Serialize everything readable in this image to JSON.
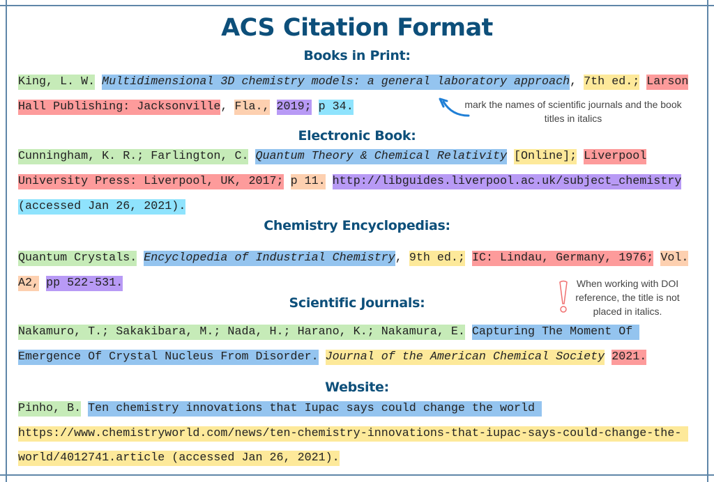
{
  "title": "ACS Citation Format",
  "palette": {
    "author": "#c6ebb8",
    "title": "#94c4ef",
    "edition": "#fde99a",
    "publisher": "#fd9b9b",
    "place": "#fdd0b0",
    "year": "#b89af5",
    "page": "#8fe3fd",
    "frame": "#5f86a8",
    "heading": "#0d4f7a"
  },
  "sections": [
    {
      "heading": "Books in Print:"
    },
    {
      "heading": "Electronic Book:"
    },
    {
      "heading": "Chemistry Encyclopedias:"
    },
    {
      "heading": "Scientific Journals:"
    },
    {
      "heading": "Website:"
    }
  ],
  "lines": [
    [
      {
        "text": "King, L. W.",
        "color": "#c6ebb8"
      },
      {
        "text": " "
      },
      {
        "text": "Multidimensional 3D chemistry models: a general laboratory approach",
        "color": "#94c4ef",
        "italic": true
      },
      {
        "text": ", "
      },
      {
        "text": "7th ed.;",
        "color": "#fde99a"
      },
      {
        "text": " "
      },
      {
        "text": "Larson",
        "color": "#fd9b9b"
      }
    ],
    [
      {
        "text": "Hall Publishing: Jacksonville",
        "color": "#fd9b9b"
      },
      {
        "text": ", "
      },
      {
        "text": "Fla.,",
        "color": "#fdd0b0"
      },
      {
        "text": " "
      },
      {
        "text": "2019;",
        "color": "#b89af5"
      },
      {
        "text": " "
      },
      {
        "text": "p 34.",
        "color": "#8fe3fd"
      }
    ],
    [
      {
        "text": "Cunningham, K. R.; Farlington, C.",
        "color": "#c6ebb8"
      },
      {
        "text": " "
      },
      {
        "text": "Quantum Theory & Chemical Relativity",
        "color": "#94c4ef",
        "italic": true
      },
      {
        "text": " "
      },
      {
        "text": "[Online];",
        "color": "#fde99a"
      },
      {
        "text": " "
      },
      {
        "text": "Liverpool",
        "color": "#fd9b9b"
      }
    ],
    [
      {
        "text": "University Press: Liverpool, UK, 2017;",
        "color": "#fd9b9b"
      },
      {
        "text": " "
      },
      {
        "text": "p 11.",
        "color": "#fdd0b0"
      },
      {
        "text": " "
      },
      {
        "text": "http://libguides.liverpool.ac.uk/subject_chemistry",
        "color": "#b89af5"
      }
    ],
    [
      {
        "text": "(accessed Jan 26, 2021).",
        "color": "#8fe3fd"
      }
    ],
    [
      {
        "text": "Quantum Crystals.",
        "color": "#c6ebb8"
      },
      {
        "text": " "
      },
      {
        "text": "Encyclopedia of Industrial Chemistry",
        "color": "#94c4ef",
        "italic": true
      },
      {
        "text": ", "
      },
      {
        "text": "9th ed.;",
        "color": "#fde99a"
      },
      {
        "text": " "
      },
      {
        "text": "IC: Lindau, Germany, 1976;",
        "color": "#fd9b9b"
      },
      {
        "text": " "
      },
      {
        "text": "Vol.",
        "color": "#fdd0b0"
      }
    ],
    [
      {
        "text": "A2,",
        "color": "#fdd0b0"
      },
      {
        "text": " "
      },
      {
        "text": "pp 522-531.",
        "color": "#b89af5"
      }
    ],
    [
      {
        "text": "Nakamuro, T.; Sakakibara, M.; Nada, H.; Harano, K.; Nakamura, E.",
        "color": "#c6ebb8"
      },
      {
        "text": " "
      },
      {
        "text": "Capturing The Moment Of ",
        "color": "#94c4ef"
      }
    ],
    [
      {
        "text": "Emergence Of Crystal Nucleus From Disorder.",
        "color": "#94c4ef"
      },
      {
        "text": " "
      },
      {
        "text": "Journal of the American Chemical Society",
        "color": "#fde99a",
        "italic": true
      },
      {
        "text": " "
      },
      {
        "text": "2021.",
        "color": "#fd9b9b"
      }
    ],
    [
      {
        "text": "Pinho, B.",
        "color": "#c6ebb8"
      },
      {
        "text": " "
      },
      {
        "text": "Ten chemistry innovations that Iupac says could change the world ",
        "color": "#94c4ef"
      }
    ],
    [
      {
        "text": "https://www.chemistryworld.com/news/ten-chemistry-innovations-that-iupac-says-could-change-the- ",
        "color": "#fde99a"
      }
    ],
    [
      {
        "text": "world/4012741.article (accessed Jan 26, 2021).",
        "color": "#fde99a"
      }
    ]
  ],
  "notes": {
    "italics": "mark the names of scientific journals and the book titles in italics",
    "doi": "When working with DOI reference, the title is not placed in italics."
  }
}
